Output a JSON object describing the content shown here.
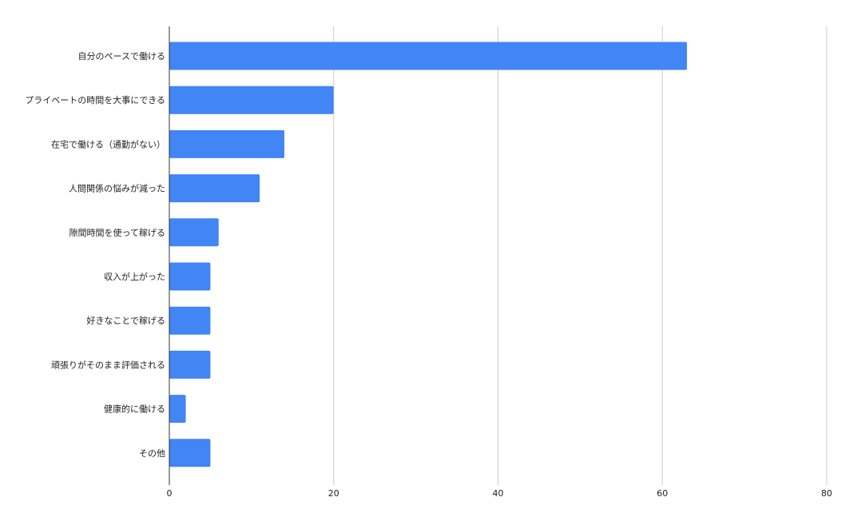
{
  "chart_data": {
    "type": "bar",
    "orientation": "horizontal",
    "title": "",
    "xlabel": "",
    "ylabel": "",
    "categories": [
      "自分のペースで働ける",
      "プライベートの時間を大事にできる",
      "在宅で働ける（通勤がない）",
      "人間関係の悩みが減った",
      "隙間時間を使って稼げる",
      "収入が上がった",
      "好きなことで稼げる",
      "頑張りがそのまま評価される",
      "健康的に働ける",
      "その他"
    ],
    "values": [
      63,
      20,
      14,
      11,
      6,
      5,
      5,
      5,
      2,
      5
    ],
    "xlim": [
      0,
      80
    ],
    "x_ticks": [
      "0",
      "20",
      "40",
      "60",
      "80"
    ],
    "grid": "vertical",
    "legend": "none",
    "bar_color": "#4285f4",
    "grid_color": "#cccccc",
    "axis_color": "#333333"
  }
}
